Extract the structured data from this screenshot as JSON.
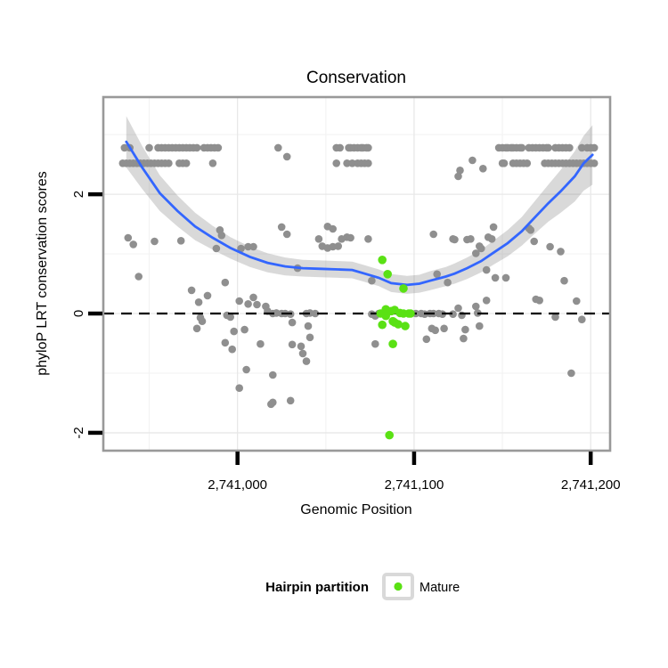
{
  "title": "Conservation",
  "axes": {
    "x": {
      "label": "Genomic Position",
      "ticks": [
        {
          "pos": 2741000,
          "label": "2,741,000"
        },
        {
          "pos": 2741100,
          "label": "2,741,100"
        },
        {
          "pos": 2741200,
          "label": "2,741,200"
        }
      ],
      "minor_gridlines": [
        2740950,
        2741050,
        2741150
      ]
    },
    "y": {
      "label": "phyloP LRT conservation scores",
      "ticks": [
        {
          "val": 2,
          "label": "2"
        },
        {
          "val": 0,
          "label": "0"
        },
        {
          "val": -2,
          "label": "-2"
        }
      ],
      "minor_gridlines": [
        -1,
        1,
        3
      ]
    }
  },
  "legend": {
    "title": "Hairpin partition",
    "items": [
      {
        "label": "Mature",
        "color": "#5ae114"
      }
    ]
  },
  "colors": {
    "gray_point": "#8f8f8f",
    "mature_point": "#5ae114",
    "smooth_line": "#3366ff",
    "band": "rgba(120,120,120,0.28)",
    "panel_border": "#999999",
    "grid_major": "#e8e8e8",
    "grid_minor": "#f3f3f3",
    "zero_line": "#000000"
  },
  "chart_data": {
    "type": "scatter",
    "title": "Conservation",
    "xlabel": "Genomic Position",
    "ylabel": "phyloP LRT conservation scores",
    "xlim": [
      2740924,
      2741211
    ],
    "ylim": [
      -2.3,
      3.63
    ],
    "grid": true,
    "legend_position": "bottom",
    "hline": {
      "y": 0,
      "style": "dashed"
    },
    "series": [
      {
        "name": "other",
        "color": "#8f8f8f",
        "rows": [
          {
            "score": 2.78,
            "positions": [
              2740936,
              2740939,
              2740950,
              2740955,
              2740957,
              2740959,
              2740961,
              2740963,
              2740965,
              2740967,
              2740969,
              2740971,
              2740973,
              2740975,
              2740977,
              2740981,
              2740983,
              2740985,
              2740987,
              2740989,
              2741023,
              2741056,
              2741058,
              2741063,
              2741064,
              2741066,
              2741068,
              2741070,
              2741071,
              2741073,
              2741074,
              2741148,
              2741150,
              2741152,
              2741153,
              2741155,
              2741156,
              2741158,
              2741160,
              2741161,
              2741165,
              2741167,
              2741169,
              2741171,
              2741173,
              2741175,
              2741176,
              2741180,
              2741182,
              2741184,
              2741186,
              2741188,
              2741195,
              2741198,
              2741200,
              2741202
            ]
          },
          {
            "score": 2.52,
            "positions": [
              2740935,
              2740937,
              2740939,
              2740941,
              2740943,
              2740945,
              2740947,
              2740949,
              2740951,
              2740953,
              2740955,
              2740957,
              2740959,
              2740961,
              2740967,
              2740969,
              2740971,
              2740986,
              2741056,
              2741062,
              2741065,
              2741068,
              2741070,
              2741072,
              2741074,
              2741150,
              2741151,
              2741156,
              2741158,
              2741160,
              2741162,
              2741164,
              2741174,
              2741176,
              2741178,
              2741180,
              2741182,
              2741184,
              2741186,
              2741188,
              2741190,
              2741192,
              2741194,
              2741196,
              2741198,
              2741200,
              2741202
            ]
          }
        ],
        "points": [
          [
            2741028,
            2.63
          ],
          [
            2741126,
            2.4
          ],
          [
            2741125,
            2.3
          ],
          [
            2741133,
            2.57
          ],
          [
            2741139,
            2.43
          ],
          [
            2740938,
            1.27
          ],
          [
            2740941,
            1.16
          ],
          [
            2740953,
            1.21
          ],
          [
            2740968,
            1.22
          ],
          [
            2740990,
            1.4
          ],
          [
            2740991,
            1.31
          ],
          [
            2740988,
            1.09
          ],
          [
            2741002,
            1.09
          ],
          [
            2741006,
            1.12
          ],
          [
            2741009,
            1.12
          ],
          [
            2741025,
            1.45
          ],
          [
            2741028,
            1.33
          ],
          [
            2741046,
            1.25
          ],
          [
            2741051,
            1.46
          ],
          [
            2741054,
            1.42
          ],
          [
            2741048,
            1.13
          ],
          [
            2741051,
            1.1
          ],
          [
            2741054,
            1.12
          ],
          [
            2741057,
            1.13
          ],
          [
            2741059,
            1.25
          ],
          [
            2741062,
            1.28
          ],
          [
            2741064,
            1.27
          ],
          [
            2741074,
            1.25
          ],
          [
            2741111,
            1.33
          ],
          [
            2741122,
            1.25
          ],
          [
            2741145,
            1.45
          ],
          [
            2741165,
            1.43
          ],
          [
            2741166,
            1.4
          ],
          [
            2741142,
            1.28
          ],
          [
            2741144,
            1.25
          ],
          [
            2741123,
            1.24
          ],
          [
            2741130,
            1.24
          ],
          [
            2741132,
            1.25
          ],
          [
            2741137,
            1.13
          ],
          [
            2741138,
            1.09
          ],
          [
            2741168,
            1.21
          ],
          [
            2741177,
            1.12
          ],
          [
            2741183,
            1.04
          ],
          [
            2741135,
            1.01
          ],
          [
            2741141,
            0.73
          ],
          [
            2741034,
            0.76
          ],
          [
            2741076,
            0.55
          ],
          [
            2741113,
            0.66
          ],
          [
            2741119,
            0.52
          ],
          [
            2740944,
            0.62
          ],
          [
            2740974,
            0.39
          ],
          [
            2740983,
            0.3
          ],
          [
            2740978,
            0.19
          ],
          [
            2740993,
            0.52
          ],
          [
            2741001,
            0.21
          ],
          [
            2741006,
            0.16
          ],
          [
            2741011,
            0.15
          ],
          [
            2741009,
            0.27
          ],
          [
            2741016,
            0.12
          ],
          [
            2741017,
            0.04
          ],
          [
            2740979,
            -0.07
          ],
          [
            2740980,
            -0.13
          ],
          [
            2740977,
            -0.25
          ],
          [
            2740996,
            -0.06
          ],
          [
            2740994,
            -0.03
          ],
          [
            2740998,
            -0.3
          ],
          [
            2741004,
            -0.27
          ],
          [
            2740993,
            -0.49
          ],
          [
            2740997,
            -0.6
          ],
          [
            2741013,
            -0.51
          ],
          [
            2741005,
            -0.94
          ],
          [
            2741001,
            -1.25
          ],
          [
            2741019,
            -1.52
          ],
          [
            2741020,
            0.0
          ],
          [
            2741022,
            0.01
          ],
          [
            2741025,
            0.0
          ],
          [
            2741027,
            0.0
          ],
          [
            2741030,
            -0.01
          ],
          [
            2741039,
            0.0
          ],
          [
            2741041,
            0.01
          ],
          [
            2741044,
            0.0
          ],
          [
            2741076,
            -0.01
          ],
          [
            2741078,
            -0.04
          ],
          [
            2741080,
            0.0
          ],
          [
            2741101,
            0.0
          ],
          [
            2741104,
            0.0
          ],
          [
            2741106,
            -0.01
          ],
          [
            2741109,
            0.0
          ],
          [
            2741111,
            0.0
          ],
          [
            2741114,
            0.0
          ],
          [
            2741116,
            -0.01
          ],
          [
            2741122,
            -0.01
          ],
          [
            2741125,
            0.09
          ],
          [
            2741127,
            -0.03
          ],
          [
            2741135,
            0.12
          ],
          [
            2741136,
            0.01
          ],
          [
            2741031,
            -0.15
          ],
          [
            2741040,
            -0.21
          ],
          [
            2741041,
            -0.4
          ],
          [
            2741031,
            -0.52
          ],
          [
            2741036,
            -0.55
          ],
          [
            2741037,
            -0.67
          ],
          [
            2741039,
            -0.8
          ],
          [
            2741078,
            -0.51
          ],
          [
            2741107,
            -0.43
          ],
          [
            2741110,
            -0.25
          ],
          [
            2741112,
            -0.28
          ],
          [
            2741020,
            -1.03
          ],
          [
            2741030,
            -1.46
          ],
          [
            2741020,
            -1.49
          ],
          [
            2741146,
            0.6
          ],
          [
            2741152,
            0.6
          ],
          [
            2741185,
            0.55
          ],
          [
            2741141,
            0.22
          ],
          [
            2741169,
            0.24
          ],
          [
            2741171,
            0.22
          ],
          [
            2741192,
            0.21
          ],
          [
            2741137,
            -0.21
          ],
          [
            2741117,
            -0.25
          ],
          [
            2741129,
            -0.27
          ],
          [
            2741128,
            -0.42
          ],
          [
            2741180,
            -0.06
          ],
          [
            2741195,
            -0.1
          ],
          [
            2741189,
            -1.0
          ]
        ]
      },
      {
        "name": "Mature",
        "color": "#5ae114",
        "points": [
          [
            2741082,
            0.9
          ],
          [
            2741085,
            0.66
          ],
          [
            2741094,
            0.42
          ],
          [
            2741084,
            0.07
          ],
          [
            2741087,
            0.04
          ],
          [
            2741089,
            0.06
          ],
          [
            2741092,
            0.01
          ],
          [
            2741094,
            0.0
          ],
          [
            2741097,
            0.0
          ],
          [
            2741098,
            0.0
          ],
          [
            2741081,
            0.0
          ],
          [
            2741084,
            -0.04
          ],
          [
            2741082,
            -0.19
          ],
          [
            2741088,
            -0.13
          ],
          [
            2741089,
            -0.15
          ],
          [
            2741091,
            -0.18
          ],
          [
            2741095,
            -0.21
          ],
          [
            2741088,
            -0.51
          ],
          [
            2741086,
            -2.04
          ]
        ]
      }
    ],
    "smooth": {
      "color": "#3366ff",
      "band_color": "rgba(120,120,120,0.28)",
      "points": [
        [
          2740937,
          2.88,
          0.43
        ],
        [
          2740946,
          2.45,
          0.36
        ],
        [
          2740956,
          2.02,
          0.3
        ],
        [
          2740966,
          1.72,
          0.26
        ],
        [
          2740976,
          1.46,
          0.23
        ],
        [
          2740986,
          1.27,
          0.2
        ],
        [
          2740996,
          1.1,
          0.18
        ],
        [
          2741007,
          0.95,
          0.17
        ],
        [
          2741017,
          0.85,
          0.16
        ],
        [
          2741027,
          0.79,
          0.15
        ],
        [
          2741037,
          0.76,
          0.14
        ],
        [
          2741047,
          0.75,
          0.14
        ],
        [
          2741057,
          0.74,
          0.14
        ],
        [
          2741065,
          0.73,
          0.14
        ],
        [
          2741072,
          0.67,
          0.14
        ],
        [
          2741080,
          0.6,
          0.14
        ],
        [
          2741087,
          0.51,
          0.15
        ],
        [
          2741096,
          0.48,
          0.15
        ],
        [
          2741103,
          0.5,
          0.15
        ],
        [
          2741109,
          0.55,
          0.16
        ],
        [
          2741118,
          0.62,
          0.16
        ],
        [
          2741123,
          0.67,
          0.17
        ],
        [
          2741130,
          0.76,
          0.18
        ],
        [
          2741138,
          0.88,
          0.19
        ],
        [
          2741145,
          1.02,
          0.2
        ],
        [
          2741153,
          1.18,
          0.22
        ],
        [
          2741161,
          1.38,
          0.24
        ],
        [
          2741168,
          1.6,
          0.27
        ],
        [
          2741176,
          1.85,
          0.31
        ],
        [
          2741183,
          2.05,
          0.36
        ],
        [
          2741191,
          2.3,
          0.42
        ],
        [
          2741196,
          2.52,
          0.46
        ],
        [
          2741201,
          2.66,
          0.5
        ]
      ]
    }
  }
}
